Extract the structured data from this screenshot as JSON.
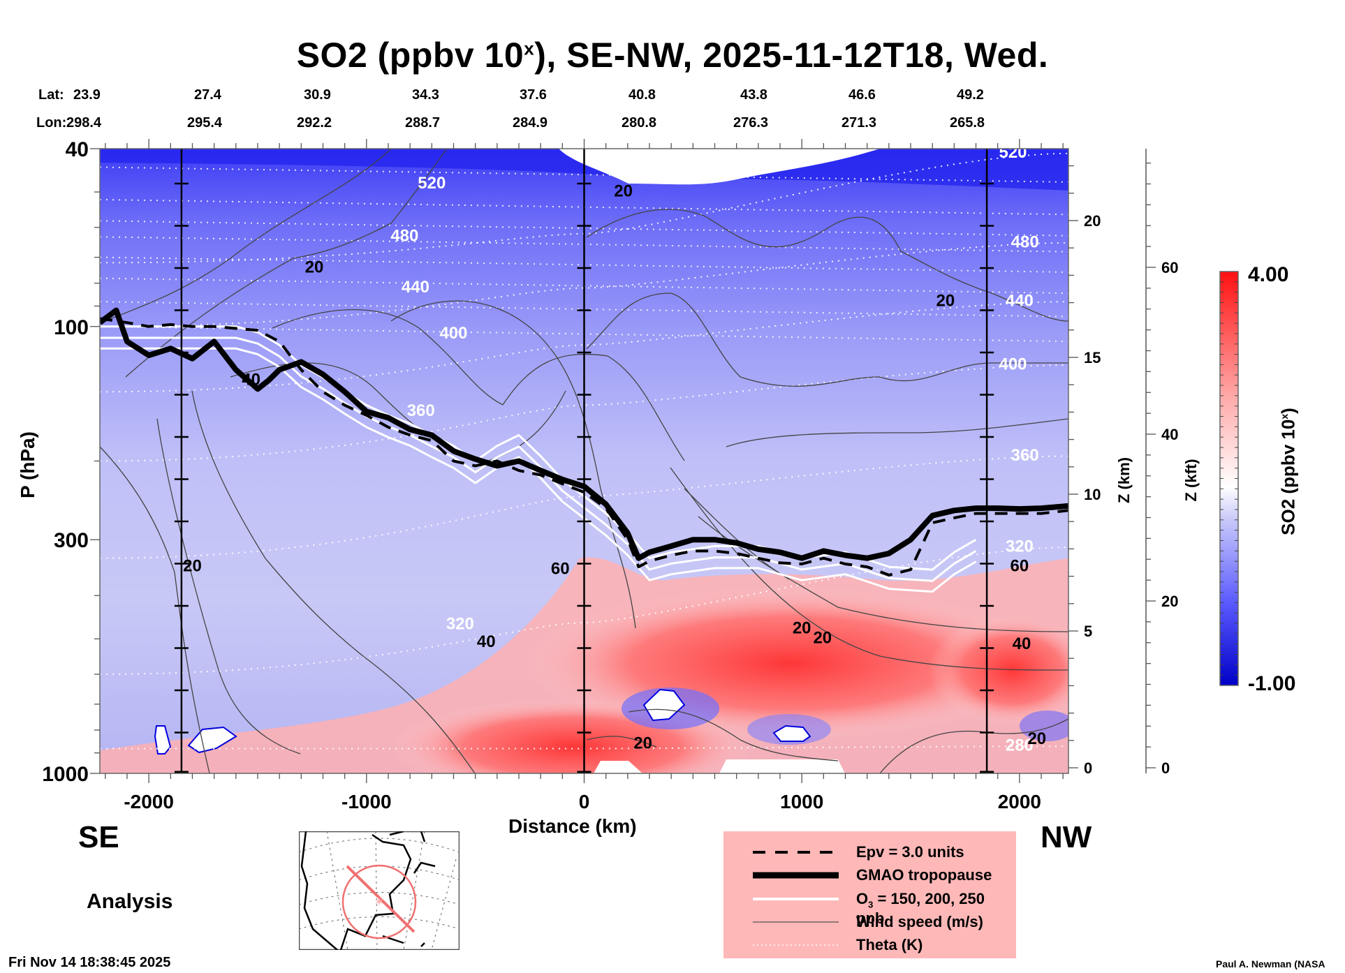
{
  "chart_data": {
    "type": "heatmap",
    "title": "SO2 (ppbv 10^x), SE-NW, 2025-11-12T18, Wed.",
    "title_parts": {
      "pre": "SO2 (ppbv 10",
      "sup": "x",
      "post": "), SE-NW, 2025-11-12T18, Wed."
    },
    "xlabel": "Distance (km)",
    "ylabel": "P (hPa)",
    "y2label": "Z (km)",
    "y3label": "Z (kft)",
    "colorbar_label": "SO2 (ppbv 10^x)",
    "colorbar_label_parts": {
      "pre": "SO2 (ppbv 10",
      "sup": "x",
      "post": ")"
    },
    "xlim": [
      -2225,
      2225
    ],
    "ylim_hPa": [
      1000,
      40
    ],
    "y_scale": "log",
    "x_ticks": [
      -2000,
      -1000,
      0,
      1000,
      2000
    ],
    "x_tick_labels": [
      "-2000",
      "-1000",
      "0",
      "1000",
      "2000"
    ],
    "y_ticks": [
      40,
      100,
      300,
      1000
    ],
    "y_tick_labels": [
      "40",
      "100",
      "300",
      "1000"
    ],
    "z_km_ticks": [
      0,
      5,
      10,
      15,
      20
    ],
    "z_km_tick_labels": [
      "0",
      "5",
      "10",
      "15",
      "20"
    ],
    "z_kft_ticks": [
      0,
      20,
      40,
      60
    ],
    "z_kft_tick_labels": [
      "0",
      "20",
      "40",
      "60"
    ],
    "colorbar": {
      "min": -1.0,
      "max": 4.0,
      "min_label": "-1.00",
      "max_label": "4.00",
      "low_color": "#0000d0",
      "mid_color": "#ffffff",
      "high_color": "#ff0000"
    },
    "lat_label": "Lat:",
    "lon_label": "Lon:",
    "station_distances_km": [
      -1850,
      0,
      1850
    ],
    "lat": [
      "23.9",
      "27.4",
      "30.9",
      "34.3",
      "37.6",
      "40.8",
      "43.8",
      "46.6",
      "49.2"
    ],
    "lon": [
      "298.4",
      "295.4",
      "292.2",
      "288.7",
      "284.9",
      "280.8",
      "276.3",
      "271.3",
      "265.8"
    ],
    "theta_levels_K": [
      280,
      320,
      360,
      400,
      440,
      480,
      520
    ],
    "theta_contour_labels": [
      {
        "text": "520",
        "x": -700,
        "p": 48
      },
      {
        "text": "480",
        "x": -825,
        "p": 63
      },
      {
        "text": "440",
        "x": -775,
        "p": 82
      },
      {
        "text": "400",
        "x": -600,
        "p": 104
      },
      {
        "text": "360",
        "x": -750,
        "p": 155
      },
      {
        "text": "320",
        "x": -570,
        "p": 465
      },
      {
        "text": "520",
        "x": 1970,
        "p": 41
      },
      {
        "text": "480",
        "x": 2025,
        "p": 65
      },
      {
        "text": "440",
        "x": 2000,
        "p": 88
      },
      {
        "text": "400",
        "x": 1970,
        "p": 122
      },
      {
        "text": "360",
        "x": 2025,
        "p": 195
      },
      {
        "text": "320",
        "x": 2000,
        "p": 312
      },
      {
        "text": "280",
        "x": 2000,
        "p": 870
      }
    ],
    "wind_contour_labels": [
      {
        "text": "20",
        "x": -1240,
        "p": 74
      },
      {
        "text": "40",
        "x": -1530,
        "p": 132
      },
      {
        "text": "20",
        "x": 180,
        "p": 50
      },
      {
        "text": "20",
        "x": 1660,
        "p": 88
      },
      {
        "text": "20",
        "x": -1800,
        "p": 345
      },
      {
        "text": "60",
        "x": -110,
        "p": 350
      },
      {
        "text": "40",
        "x": -450,
        "p": 510
      },
      {
        "text": "20",
        "x": 1000,
        "p": 475
      },
      {
        "text": "20",
        "x": 1095,
        "p": 500
      },
      {
        "text": "60",
        "x": 2000,
        "p": 345
      },
      {
        "text": "40",
        "x": 2010,
        "p": 515
      },
      {
        "text": "20",
        "x": 2080,
        "p": 840
      },
      {
        "text": "20",
        "x": 270,
        "p": 860
      }
    ],
    "tropopause_hPa": {
      "x": [
        -2225,
        -2150,
        -2100,
        -2000,
        -1900,
        -1800,
        -1700,
        -1600,
        -1500,
        -1450,
        -1400,
        -1300,
        -1200,
        -1100,
        -1000,
        -900,
        -800,
        -700,
        -600,
        -500,
        -400,
        -300,
        -200,
        -100,
        0,
        100,
        200,
        250,
        300,
        400,
        500,
        600,
        700,
        800,
        900,
        1000,
        1100,
        1200,
        1300,
        1400,
        1500,
        1600,
        1700,
        1800,
        1900,
        2000,
        2100,
        2225
      ],
      "values": [
        98,
        92,
        108,
        116,
        112,
        118,
        108,
        125,
        138,
        132,
        125,
        120,
        128,
        140,
        155,
        160,
        170,
        175,
        190,
        198,
        205,
        200,
        210,
        220,
        228,
        250,
        290,
        330,
        320,
        310,
        300,
        300,
        305,
        315,
        320,
        330,
        318,
        325,
        330,
        322,
        300,
        265,
        258,
        255,
        255,
        256,
        255,
        252
      ]
    },
    "epv_hPa": {
      "x": [
        -2225,
        -2100,
        -2000,
        -1900,
        -1800,
        -1700,
        -1600,
        -1500,
        -1400,
        -1300,
        -1200,
        -1100,
        -1000,
        -900,
        -800,
        -700,
        -600,
        -500,
        -400,
        -300,
        -200,
        -100,
        0,
        100,
        200,
        250,
        300,
        400,
        500,
        600,
        700,
        800,
        900,
        1000,
        1100,
        1200,
        1300,
        1400,
        1500,
        1600,
        1700,
        1800,
        1900,
        2000,
        2100,
        2225
      ],
      "values": [
        96,
        98,
        100,
        99,
        100,
        100,
        101,
        102,
        108,
        125,
        140,
        150,
        158,
        168,
        175,
        180,
        200,
        205,
        200,
        210,
        215,
        225,
        235,
        255,
        300,
        345,
        335,
        325,
        318,
        318,
        322,
        330,
        338,
        340,
        330,
        340,
        345,
        360,
        350,
        275,
        268,
        262,
        262,
        262,
        262,
        258
      ]
    },
    "o3_150_hPa": {
      "x": [
        -2225,
        -2000,
        -1800,
        -1600,
        -1500,
        -1400,
        -1300,
        -1200,
        -1100,
        -1000,
        -900,
        -800,
        -700,
        -600,
        -500,
        -400,
        -300,
        -200,
        -100,
        0,
        100,
        200,
        300,
        400,
        600,
        800,
        1000,
        1200,
        1400,
        1600,
        1700,
        1800
      ],
      "values": [
        100,
        100,
        100,
        100,
        103,
        110,
        122,
        130,
        140,
        150,
        158,
        165,
        175,
        185,
        200,
        185,
        175,
        195,
        220,
        240,
        262,
        290,
        330,
        320,
        310,
        310,
        330,
        320,
        345,
        350,
        320,
        300
      ]
    },
    "legend": {
      "entries": [
        {
          "style": "dashed",
          "label": "Epv = 3.0 units"
        },
        {
          "style": "thick",
          "label": "GMAO tropopause"
        },
        {
          "style": "white",
          "label": "O3 = 150, 200, 250 ppb",
          "label_parts": {
            "pre": "O",
            "sub": "3",
            "post": " = 150, 200, 250 ppb"
          }
        },
        {
          "style": "thin",
          "label": "Wind speed (m/s)"
        },
        {
          "style": "dotted",
          "label": "Theta (K)"
        }
      ]
    }
  },
  "labels": {
    "se": "SE",
    "nw": "NW",
    "analysis": "Analysis",
    "timestamp": "Fri Nov 14 18:38:45 2025",
    "credit": "Paul A. Newman (NASA"
  },
  "colors": {
    "legend_bg": "#ffb8b8",
    "map_track": "#f07070",
    "tropopause": "#000000",
    "o3": "#ffffff"
  }
}
